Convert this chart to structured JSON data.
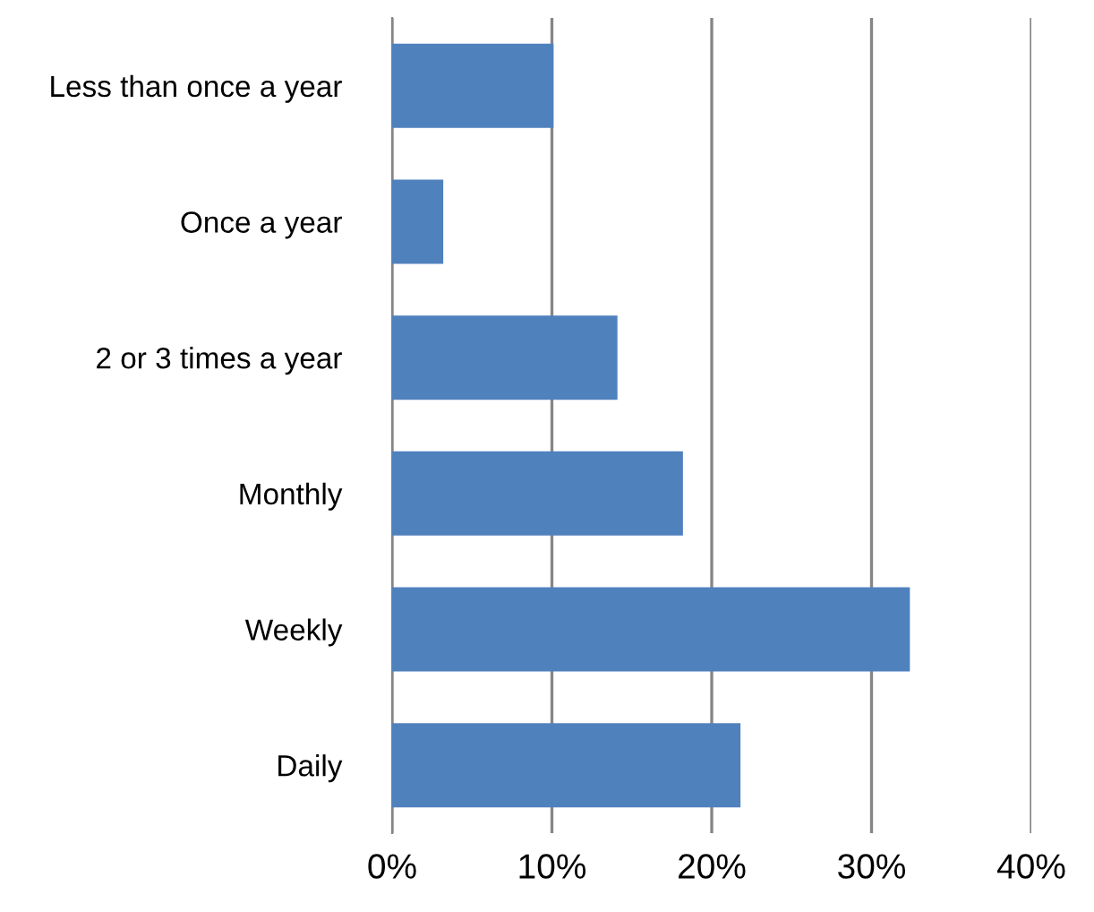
{
  "chart_data": {
    "type": "bar",
    "orientation": "horizontal",
    "categories": [
      "Less than once a year",
      "Once a year",
      "2 or 3 times a year",
      "Monthly",
      "Weekly",
      "Daily"
    ],
    "values": [
      10.1,
      3.2,
      14.1,
      18.2,
      32.4,
      21.8
    ],
    "color": "#4f81bd",
    "xlim": [
      0,
      40
    ],
    "xticks": [
      {
        "value": 0,
        "label": "0%"
      },
      {
        "value": 10,
        "label": "10%"
      },
      {
        "value": 20,
        "label": "20%"
      },
      {
        "value": 30,
        "label": "30%"
      },
      {
        "value": 40,
        "label": "40%"
      }
    ],
    "grid": "x"
  }
}
